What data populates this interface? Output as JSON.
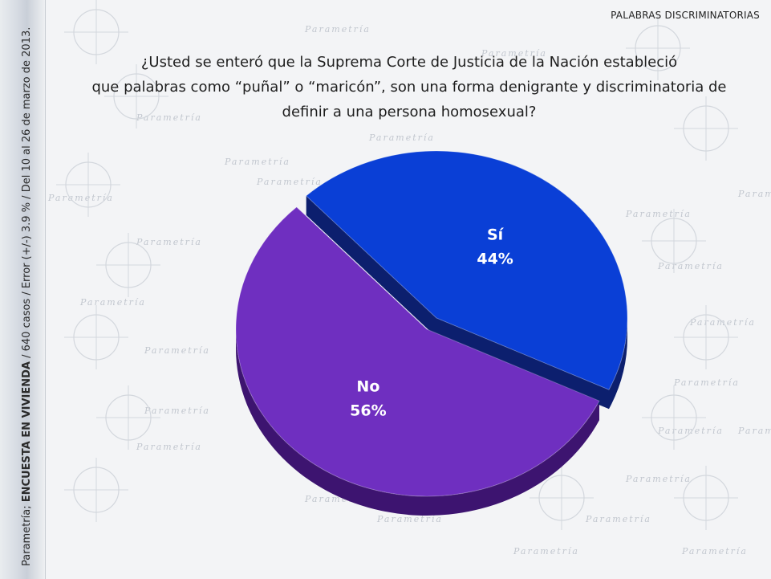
{
  "header": {
    "topic": "PALABRAS DISCRIMINATORIAS",
    "question_line1": "¿Usted se enteró que la Suprema Corte de Justicia de la Nación estableció",
    "question_line2": "que palabras como “puñal” o “maricón”, son una forma denigrante y discriminatoria de",
    "question_line3": "definir a una persona homosexual?"
  },
  "sidebar": {
    "prefix": "Parametría; ",
    "survey": "ENCUESTA EN VIVIENDA",
    "details": " / 640 casos / Error (+/-) 3.9 % / Del 10 al 26 de marzo de 2013."
  },
  "watermark": "Parametría",
  "chart_data": {
    "type": "pie",
    "title": "",
    "categories": [
      "Sí",
      "No"
    ],
    "values": [
      44,
      56
    ],
    "value_labels": [
      "44%",
      "56%"
    ],
    "colors": [
      "#0a3fd6",
      "#6f2fc0"
    ],
    "side_colors": [
      "#0c1f6e",
      "#3d1470"
    ],
    "exploded": "Sí",
    "style": "3d"
  }
}
